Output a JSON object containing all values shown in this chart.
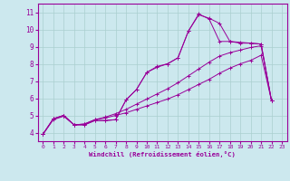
{
  "xlabel": "Windchill (Refroidissement éolien,°C)",
  "background_color": "#cce8ee",
  "line_color": "#990099",
  "grid_color": "#aacfcf",
  "xlim": [
    -0.5,
    23.5
  ],
  "ylim": [
    3.5,
    11.5
  ],
  "yticks": [
    4,
    5,
    6,
    7,
    8,
    9,
    10,
    11
  ],
  "xticks": [
    0,
    1,
    2,
    3,
    4,
    5,
    6,
    7,
    8,
    9,
    10,
    11,
    12,
    13,
    14,
    15,
    16,
    17,
    18,
    19,
    20,
    21,
    22,
    23
  ],
  "curve1_x": [
    0,
    1,
    2,
    3,
    4,
    5,
    6,
    7,
    8,
    9,
    10,
    11,
    12,
    13,
    14,
    15,
    16,
    17,
    18,
    19,
    20,
    21,
    22
  ],
  "curve1_y": [
    3.9,
    4.8,
    5.0,
    4.45,
    4.45,
    4.7,
    4.7,
    4.75,
    5.9,
    6.5,
    7.5,
    7.8,
    8.0,
    8.35,
    9.9,
    10.85,
    10.65,
    10.35,
    9.3,
    9.25,
    9.2,
    9.15,
    5.85
  ],
  "curve2_x": [
    0,
    1,
    2,
    3,
    4,
    5,
    6,
    7,
    8,
    9,
    10,
    11,
    12,
    13,
    14,
    15,
    16,
    17,
    18,
    19,
    20,
    21,
    22
  ],
  "curve2_y": [
    3.9,
    4.8,
    5.0,
    4.45,
    4.45,
    4.7,
    4.7,
    4.75,
    5.9,
    6.5,
    7.5,
    7.85,
    8.0,
    8.35,
    9.9,
    10.9,
    10.6,
    9.3,
    9.3,
    9.2,
    9.2,
    9.15,
    5.85
  ],
  "curve3_x": [
    0,
    1,
    2,
    3,
    4,
    5,
    6,
    7,
    8,
    9,
    10,
    11,
    12,
    13,
    14,
    15,
    16,
    17,
    18,
    19,
    20,
    21,
    22
  ],
  "curve3_y": [
    3.9,
    4.8,
    5.0,
    4.45,
    4.5,
    4.75,
    4.9,
    5.1,
    5.35,
    5.65,
    5.95,
    6.25,
    6.55,
    6.9,
    7.3,
    7.7,
    8.1,
    8.45,
    8.65,
    8.8,
    8.95,
    9.05,
    5.85
  ],
  "curve4_x": [
    0,
    1,
    2,
    3,
    4,
    5,
    6,
    7,
    8,
    9,
    10,
    11,
    12,
    13,
    14,
    15,
    16,
    17,
    18,
    19,
    20,
    21,
    22
  ],
  "curve4_y": [
    3.9,
    4.75,
    4.95,
    4.45,
    4.5,
    4.75,
    4.85,
    5.0,
    5.15,
    5.35,
    5.55,
    5.75,
    5.95,
    6.2,
    6.5,
    6.8,
    7.1,
    7.45,
    7.75,
    8.0,
    8.2,
    8.5,
    5.85
  ]
}
